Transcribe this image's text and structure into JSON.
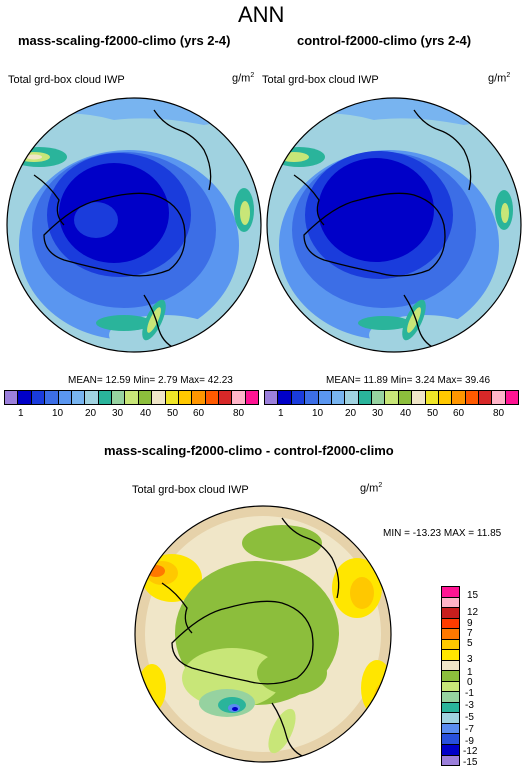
{
  "figure_title": "ANN",
  "colors": {
    "levels": [
      "#9b7fdb",
      "#0000c8",
      "#1a3cdc",
      "#3c6ee6",
      "#5a96f0",
      "#78b4f0",
      "#a0d2e0",
      "#2ab49b",
      "#96d2a0",
      "#c8e678",
      "#8cbe3c",
      "#f0e6c8",
      "#f0e628",
      "#ffc800",
      "#ff9600",
      "#ff5a00",
      "#d72828",
      "#ffb4c8",
      "#ff1493"
    ],
    "diff_levels": [
      "#9b7fdb",
      "#0000c8",
      "#2850dc",
      "#5a8cf0",
      "#a0d2e0",
      "#2ab49b",
      "#96d2a0",
      "#c8e678",
      "#8cbe3c",
      "#e6d2aa",
      "#f0e6c8",
      "#ffe600",
      "#ffc800",
      "#ff7800",
      "#ff3c00",
      "#c81e1e",
      "#ffb4c8",
      "#ff1493"
    ]
  },
  "panel_left": {
    "title": "mass-scaling-f2000-climo (yrs 2-4)",
    "variable": "Total grd-box cloud IWP",
    "units": "g/m",
    "units_exp": "2",
    "stats": "MEAN=  12.59  Min=   2.79  Max=  42.23"
  },
  "panel_right": {
    "title": "control-f2000-climo (yrs 2-4)",
    "variable": "Total grd-box cloud IWP",
    "units": "g/m",
    "units_exp": "2",
    "stats": "MEAN=  11.89  Min=   3.24  Max=  39.46"
  },
  "colorbar_top": {
    "labels": [
      "1",
      "10",
      "20",
      "30",
      "40",
      "50",
      "60",
      "80"
    ]
  },
  "panel_diff": {
    "title": "mass-scaling-f2000-climo - control-f2000-climo",
    "variable": "Total grd-box cloud IWP",
    "units": "g/m",
    "units_exp": "2",
    "stats": "MIN = -13.23  MAX =  11.85"
  },
  "colorbar_diff": {
    "labels": [
      "15",
      "12",
      "9",
      "7",
      "5",
      "3",
      "1",
      "0",
      "-1",
      "-3",
      "-5",
      "-7",
      "-9",
      "-12",
      "-15"
    ]
  }
}
